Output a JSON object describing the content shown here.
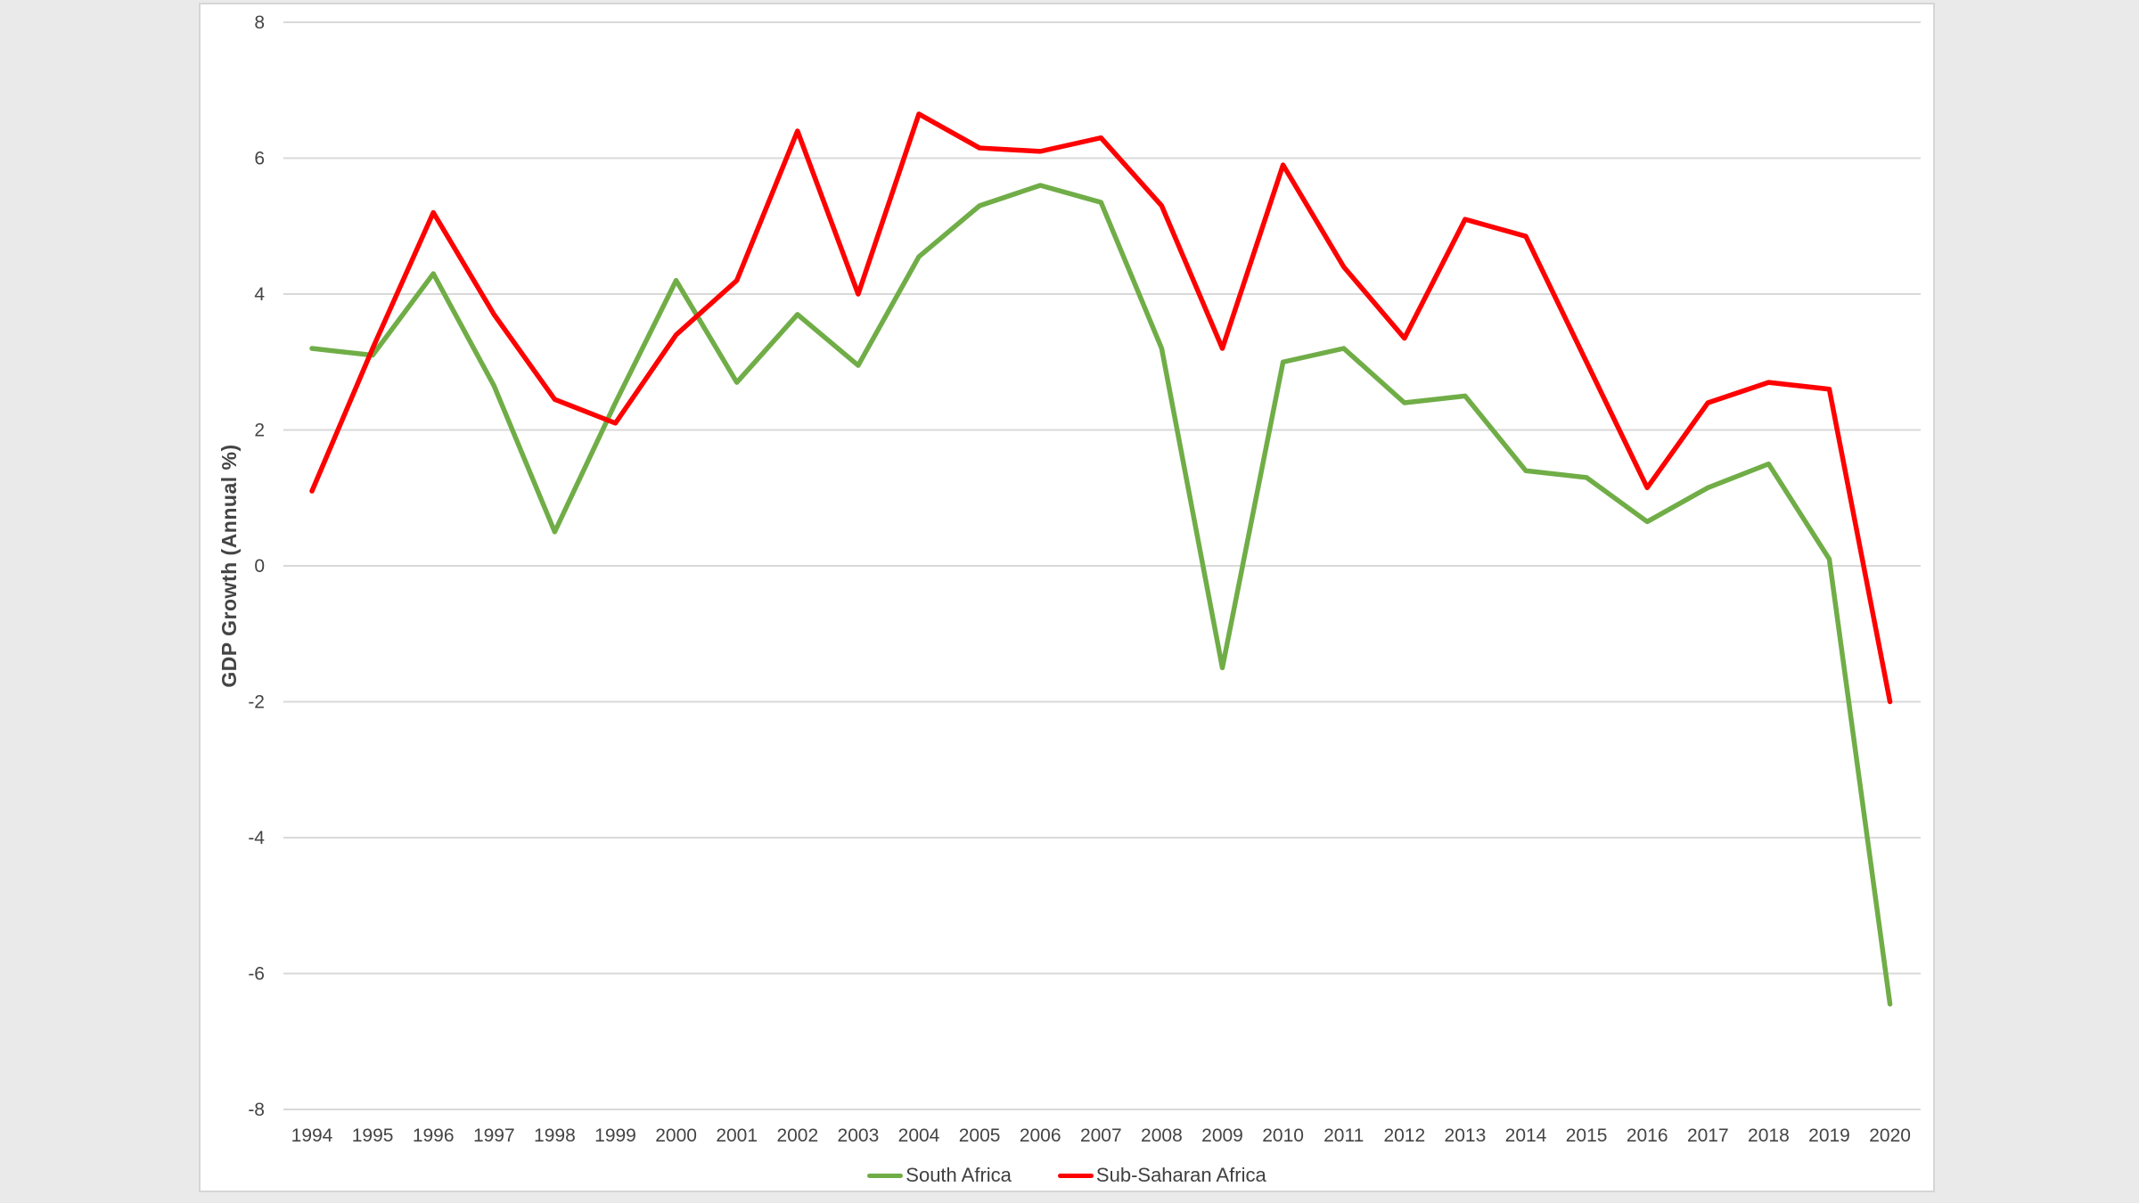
{
  "window": {
    "background": "#eaeaea",
    "panel_background": "#ffffff",
    "panel_border": "#d6d6d6"
  },
  "colors": {
    "grid": "#d9d9d9",
    "axis_text": "#444444",
    "south_africa_green": "#70AD47",
    "sub_saharan_red": "#FF0000"
  },
  "chart_data": {
    "type": "line",
    "title": "",
    "xlabel": "",
    "ylabel": "GDP Growth (Annual %)",
    "ylim": [
      -8,
      8
    ],
    "yticks": [
      8,
      6,
      4,
      2,
      0,
      -2,
      -4,
      -6,
      -8
    ],
    "grid": "horizontal",
    "legend_position": "bottom-center",
    "categories": [
      "1994",
      "1995",
      "1996",
      "1997",
      "1998",
      "1999",
      "2000",
      "2001",
      "2002",
      "2003",
      "2004",
      "2005",
      "2006",
      "2007",
      "2008",
      "2009",
      "2010",
      "2011",
      "2012",
      "2013",
      "2014",
      "2015",
      "2016",
      "2017",
      "2018",
      "2019",
      "2020"
    ],
    "series": [
      {
        "name": "South Africa",
        "color": "#70AD47",
        "values": [
          3.2,
          3.1,
          4.3,
          2.65,
          0.5,
          2.4,
          4.2,
          2.7,
          3.7,
          2.95,
          4.55,
          5.3,
          5.6,
          5.35,
          3.2,
          -1.5,
          3.0,
          3.2,
          2.4,
          2.5,
          1.4,
          1.3,
          0.65,
          1.15,
          1.5,
          0.1,
          -6.45
        ]
      },
      {
        "name": "Sub-Saharan Africa",
        "color": "#FF0000",
        "values": [
          1.1,
          3.2,
          5.2,
          3.7,
          2.45,
          2.1,
          3.4,
          4.2,
          6.4,
          4.0,
          6.65,
          6.15,
          6.1,
          6.3,
          5.3,
          3.2,
          5.9,
          4.4,
          3.35,
          5.1,
          4.85,
          3.0,
          1.15,
          2.4,
          2.7,
          2.6,
          -2.0
        ]
      }
    ]
  }
}
